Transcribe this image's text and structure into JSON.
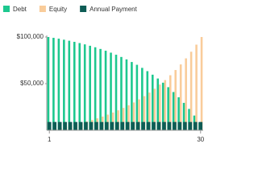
{
  "chart_data": {
    "type": "bar",
    "categories": [
      1,
      null,
      null,
      null,
      null,
      null,
      null,
      null,
      null,
      null,
      null,
      null,
      null,
      null,
      null,
      null,
      null,
      null,
      null,
      null,
      null,
      null,
      null,
      null,
      null,
      null,
      null,
      null,
      null,
      30
    ],
    "series": [
      {
        "name": "Debt",
        "color": "#1dc88f",
        "values": [
          100000,
          99100,
          98200,
          97100,
          96000,
          94800,
          93500,
          92100,
          90600,
          89000,
          87200,
          85300,
          83200,
          81000,
          78600,
          76000,
          73200,
          70200,
          66900,
          63400,
          59600,
          55500,
          51000,
          46200,
          41000,
          35400,
          29400,
          22900,
          15800,
          8200
        ]
      },
      {
        "name": "Equity",
        "color": "#f9cc9a",
        "values": [
          900,
          1800,
          2900,
          4000,
          5200,
          6500,
          7900,
          9400,
          11000,
          12800,
          14700,
          16800,
          19000,
          21400,
          24000,
          26800,
          29800,
          33100,
          36600,
          40400,
          44500,
          49000,
          53800,
          59000,
          64600,
          70600,
          77100,
          84200,
          91800,
          100000
        ]
      },
      {
        "name": "Annual Payment",
        "color": "#0e5c55",
        "values": [
          8900,
          8900,
          8900,
          8900,
          8900,
          8900,
          8900,
          8900,
          8900,
          8900,
          8900,
          8900,
          8900,
          8900,
          8900,
          8900,
          8900,
          8900,
          8900,
          8900,
          8900,
          8900,
          8900,
          8900,
          8900,
          8900,
          8900,
          8900,
          8900,
          8900
        ]
      }
    ],
    "ylim": [
      0,
      100000
    ],
    "yticks": [
      {
        "value": 50000,
        "label": "$50,000"
      },
      {
        "value": 100000,
        "label": "$100,000"
      }
    ],
    "legend": "top-left"
  }
}
